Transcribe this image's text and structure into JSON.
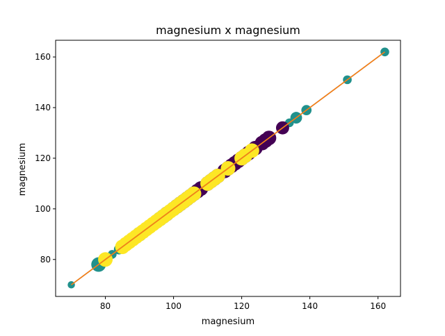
{
  "chart_data": {
    "type": "scatter",
    "title": "magnesium x magnesium",
    "xlabel": "magnesium",
    "ylabel": "magnesium",
    "xlim": [
      65.4,
      166.6
    ],
    "ylim": [
      65.4,
      166.6
    ],
    "xticks": [
      80,
      100,
      120,
      140,
      160
    ],
    "yticks": [
      80,
      100,
      120,
      140,
      160
    ],
    "grid": false,
    "legend": "none",
    "colors": {
      "class_0": "#440154",
      "class_1": "#21918c",
      "class_2": "#fde725",
      "fit_line_under": "#1f77b4",
      "fit_line": "#ff7f0e"
    },
    "series": [
      {
        "class": "class_1",
        "points": [
          {
            "x": 70,
            "y": 70,
            "size": 0.5
          },
          {
            "x": 78,
            "y": 78,
            "size": 1.0
          },
          {
            "x": 80,
            "y": 80,
            "size": 0.7
          },
          {
            "x": 82,
            "y": 82,
            "size": 0.6
          },
          {
            "x": 84,
            "y": 84,
            "size": 0.7
          },
          {
            "x": 85,
            "y": 85,
            "size": 0.8
          },
          {
            "x": 86,
            "y": 86,
            "size": 0.8
          },
          {
            "x": 88,
            "y": 88,
            "size": 0.9
          },
          {
            "x": 89,
            "y": 89,
            "size": 0.9
          },
          {
            "x": 90,
            "y": 90,
            "size": 1.0
          },
          {
            "x": 94,
            "y": 94,
            "size": 0.9
          },
          {
            "x": 96,
            "y": 96,
            "size": 1.0
          },
          {
            "x": 97,
            "y": 97,
            "size": 1.0
          },
          {
            "x": 98,
            "y": 98,
            "size": 1.0
          },
          {
            "x": 100,
            "y": 100,
            "size": 1.0
          },
          {
            "x": 101,
            "y": 101,
            "size": 1.0
          },
          {
            "x": 102,
            "y": 102,
            "size": 1.0
          },
          {
            "x": 103,
            "y": 103,
            "size": 1.0
          },
          {
            "x": 104,
            "y": 104,
            "size": 1.0
          },
          {
            "x": 106,
            "y": 106,
            "size": 1.0
          },
          {
            "x": 107,
            "y": 107,
            "size": 1.0
          },
          {
            "x": 108,
            "y": 108,
            "size": 1.0
          },
          {
            "x": 112,
            "y": 112,
            "size": 1.0
          },
          {
            "x": 134,
            "y": 134,
            "size": 0.6
          },
          {
            "x": 136,
            "y": 136,
            "size": 0.8
          },
          {
            "x": 139,
            "y": 139,
            "size": 0.7
          },
          {
            "x": 151,
            "y": 151,
            "size": 0.6
          },
          {
            "x": 162,
            "y": 162,
            "size": 0.6
          }
        ]
      },
      {
        "class": "class_0",
        "points": [
          {
            "x": 98,
            "y": 98,
            "size": 1.0
          },
          {
            "x": 101,
            "y": 101,
            "size": 1.0
          },
          {
            "x": 102,
            "y": 102,
            "size": 1.0
          },
          {
            "x": 103,
            "y": 103,
            "size": 1.0
          },
          {
            "x": 104,
            "y": 104,
            "size": 1.0
          },
          {
            "x": 105,
            "y": 105,
            "size": 1.0
          },
          {
            "x": 106,
            "y": 106,
            "size": 1.0
          },
          {
            "x": 107,
            "y": 107,
            "size": 1.0
          },
          {
            "x": 108,
            "y": 108,
            "size": 1.0
          },
          {
            "x": 110,
            "y": 110,
            "size": 1.0
          },
          {
            "x": 111,
            "y": 111,
            "size": 1.0
          },
          {
            "x": 112,
            "y": 112,
            "size": 1.0
          },
          {
            "x": 113,
            "y": 113,
            "size": 1.0
          },
          {
            "x": 115,
            "y": 115,
            "size": 1.0
          },
          {
            "x": 116,
            "y": 116,
            "size": 1.0
          },
          {
            "x": 117,
            "y": 117,
            "size": 1.0
          },
          {
            "x": 118,
            "y": 118,
            "size": 1.0
          },
          {
            "x": 119,
            "y": 119,
            "size": 1.0
          },
          {
            "x": 120,
            "y": 120,
            "size": 1.0
          },
          {
            "x": 121,
            "y": 121,
            "size": 1.0
          },
          {
            "x": 122,
            "y": 122,
            "size": 1.0
          },
          {
            "x": 124,
            "y": 124,
            "size": 1.0
          },
          {
            "x": 126,
            "y": 126,
            "size": 1.0
          },
          {
            "x": 127,
            "y": 127,
            "size": 1.0
          },
          {
            "x": 128,
            "y": 128,
            "size": 1.0
          },
          {
            "x": 132,
            "y": 132,
            "size": 0.9
          }
        ]
      },
      {
        "class": "class_2",
        "points": [
          {
            "x": 80,
            "y": 80,
            "size": 1.0
          },
          {
            "x": 85,
            "y": 85,
            "size": 1.0
          },
          {
            "x": 86,
            "y": 86,
            "size": 1.0
          },
          {
            "x": 87,
            "y": 87,
            "size": 1.0
          },
          {
            "x": 88,
            "y": 88,
            "size": 1.0
          },
          {
            "x": 89,
            "y": 89,
            "size": 1.0
          },
          {
            "x": 90,
            "y": 90,
            "size": 1.0
          },
          {
            "x": 91,
            "y": 91,
            "size": 1.0
          },
          {
            "x": 92,
            "y": 92,
            "size": 1.0
          },
          {
            "x": 93,
            "y": 93,
            "size": 1.0
          },
          {
            "x": 94,
            "y": 94,
            "size": 1.0
          },
          {
            "x": 95,
            "y": 95,
            "size": 1.0
          },
          {
            "x": 96,
            "y": 96,
            "size": 1.0
          },
          {
            "x": 97,
            "y": 97,
            "size": 1.0
          },
          {
            "x": 98,
            "y": 98,
            "size": 1.0
          },
          {
            "x": 99,
            "y": 99,
            "size": 1.0
          },
          {
            "x": 100,
            "y": 100,
            "size": 1.0
          },
          {
            "x": 101,
            "y": 101,
            "size": 1.0
          },
          {
            "x": 102,
            "y": 102,
            "size": 1.0
          },
          {
            "x": 103,
            "y": 103,
            "size": 1.0
          },
          {
            "x": 104,
            "y": 104,
            "size": 1.0
          },
          {
            "x": 105,
            "y": 105,
            "size": 1.0
          },
          {
            "x": 106,
            "y": 106,
            "size": 1.0
          },
          {
            "x": 110,
            "y": 110,
            "size": 1.0
          },
          {
            "x": 111,
            "y": 111,
            "size": 1.0
          },
          {
            "x": 112,
            "y": 112,
            "size": 1.0
          },
          {
            "x": 113,
            "y": 113,
            "size": 1.0
          },
          {
            "x": 116,
            "y": 116,
            "size": 1.0
          },
          {
            "x": 120,
            "y": 120,
            "size": 1.0
          },
          {
            "x": 121,
            "y": 121,
            "size": 1.0
          },
          {
            "x": 123,
            "y": 123,
            "size": 1.0
          }
        ]
      }
    ],
    "fit_line": {
      "x": [
        70,
        162
      ],
      "y": [
        70,
        162
      ]
    }
  }
}
